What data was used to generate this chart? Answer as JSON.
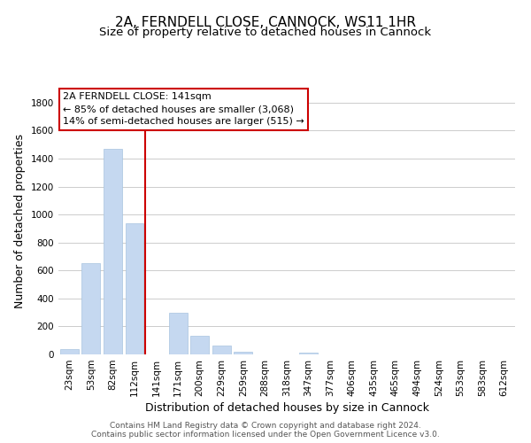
{
  "title": "2A, FERNDELL CLOSE, CANNOCK, WS11 1HR",
  "subtitle": "Size of property relative to detached houses in Cannock",
  "xlabel": "Distribution of detached houses by size in Cannock",
  "ylabel": "Number of detached properties",
  "bar_color": "#c5d8f0",
  "bar_edge_color": "#a8c4e0",
  "marker_line_color": "#cc0000",
  "annotation_title": "2A FERNDELL CLOSE: 141sqm",
  "annotation_line1": "← 85% of detached houses are smaller (3,068)",
  "annotation_line2": "14% of semi-detached houses are larger (515) →",
  "annotation_box_color": "#ffffff",
  "annotation_box_edge": "#cc0000",
  "categories": [
    "23sqm",
    "53sqm",
    "82sqm",
    "112sqm",
    "141sqm",
    "171sqm",
    "200sqm",
    "229sqm",
    "259sqm",
    "288sqm",
    "318sqm",
    "347sqm",
    "377sqm",
    "406sqm",
    "435sqm",
    "465sqm",
    "494sqm",
    "524sqm",
    "553sqm",
    "583sqm",
    "612sqm"
  ],
  "values": [
    40,
    655,
    1470,
    940,
    0,
    295,
    130,
    65,
    20,
    0,
    0,
    12,
    0,
    0,
    0,
    0,
    0,
    0,
    0,
    0,
    0
  ],
  "ylim": [
    0,
    1900
  ],
  "yticks": [
    0,
    200,
    400,
    600,
    800,
    1000,
    1200,
    1400,
    1600,
    1800
  ],
  "footnote1": "Contains HM Land Registry data © Crown copyright and database right 2024.",
  "footnote2": "Contains public sector information licensed under the Open Government Licence v3.0.",
  "background_color": "#ffffff",
  "grid_color": "#cccccc",
  "title_fontsize": 11,
  "subtitle_fontsize": 9.5,
  "axis_label_fontsize": 9,
  "tick_fontsize": 7.5,
  "annotation_fontsize": 8,
  "footnote_fontsize": 6.5
}
